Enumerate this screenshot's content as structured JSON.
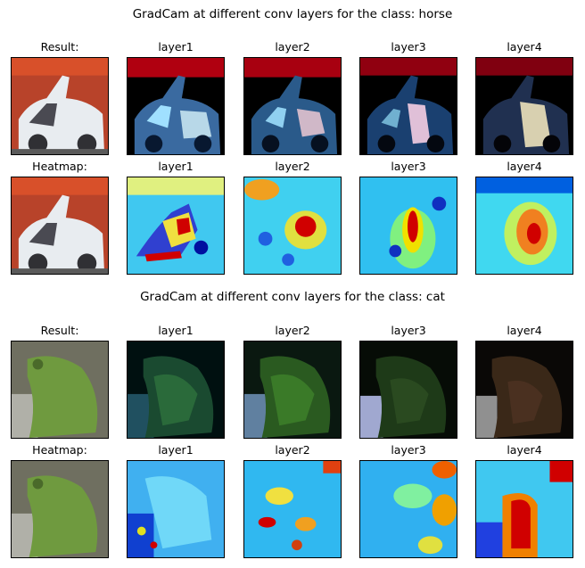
{
  "figures": [
    {
      "title": "GradCam at different conv layers for the class: horse",
      "rows": [
        {
          "titles": [
            "Result:",
            "layer1",
            "layer2",
            "layer3",
            "layer4"
          ],
          "kind": "result"
        },
        {
          "titles": [
            "Heatmap:",
            "layer1",
            "layer2",
            "layer3",
            "layer4"
          ],
          "kind": "heatmap"
        }
      ]
    },
    {
      "title": "GradCam at different conv layers for the class: cat",
      "rows": [
        {
          "titles": [
            "Result:",
            "layer1",
            "layer2",
            "layer3",
            "layer4"
          ],
          "kind": "result"
        },
        {
          "titles": [
            "Heatmap:",
            "layer1",
            "layer2",
            "layer3",
            "layer4"
          ],
          "kind": "heatmap"
        }
      ]
    }
  ],
  "colors": {
    "car_bg": "#b8432a",
    "car_body": "#e8ecf0",
    "frog_bg": "#6f6f60",
    "frog_body": "#6f9a3f",
    "heat_low": "#0000c0",
    "heat_mid": "#40e0ff",
    "heat_high": "#c00000"
  }
}
